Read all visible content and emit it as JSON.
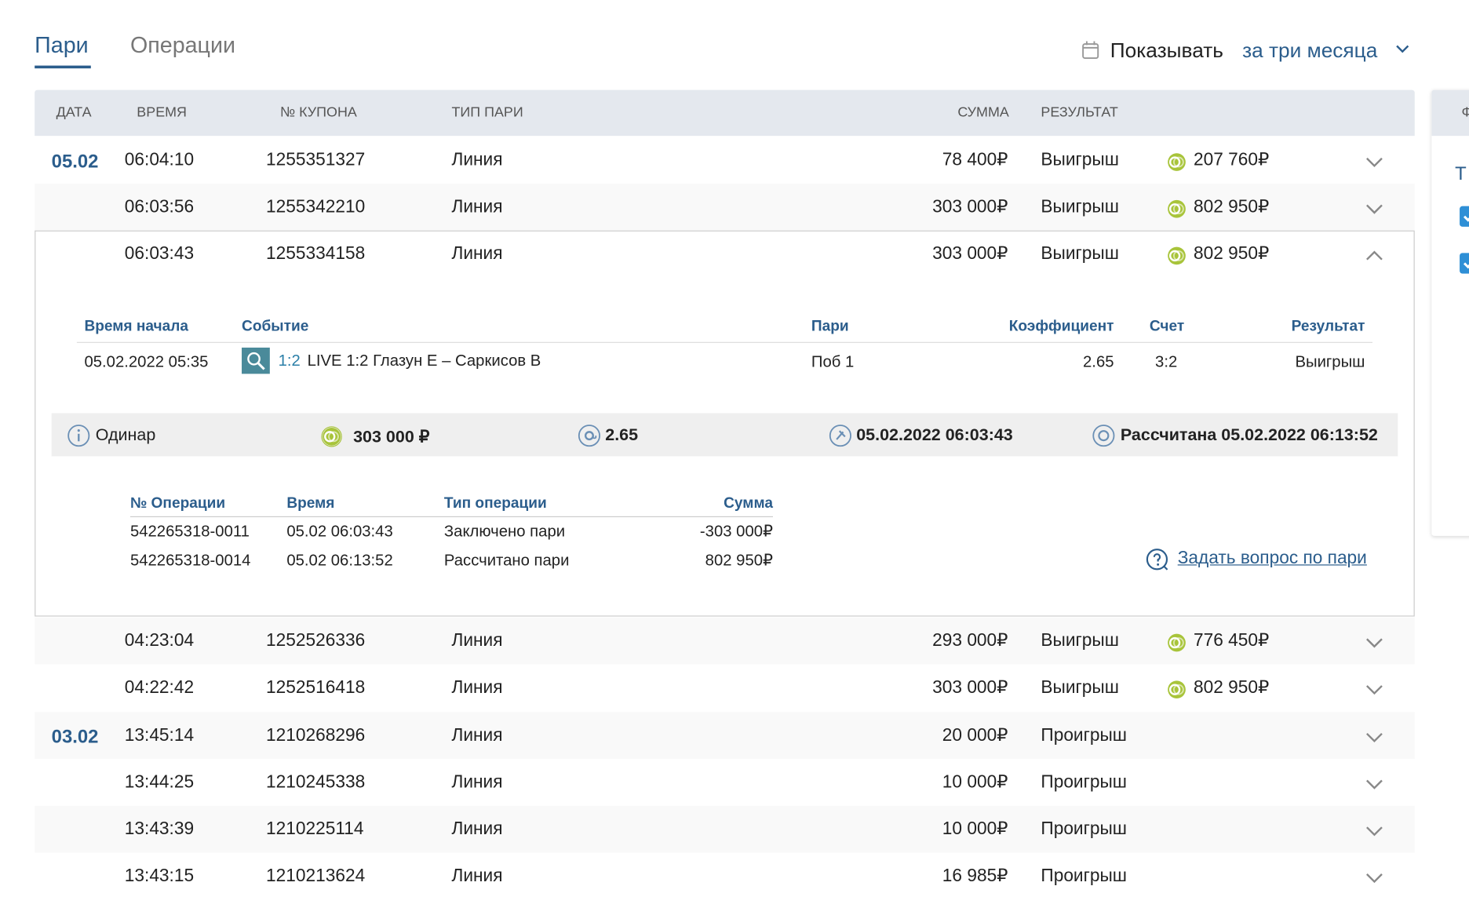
{
  "tabs": [
    "Пари",
    "Операции"
  ],
  "filter": {
    "label": "Показывать",
    "period": "за три месяца"
  },
  "table": {
    "headers": [
      "ДАТА",
      "ВРЕМЯ",
      "№ КУПОНА",
      "ТИП ПАРИ",
      "СУММА",
      "РЕЗУЛЬТАТ"
    ],
    "rows": [
      {
        "date": "05.02",
        "time": "06:04:10",
        "coupon": "1255351327",
        "type": "Линия",
        "amount": "78 400₽",
        "result": "Выигрыш",
        "payout": "207 760₽"
      },
      {
        "time": "06:03:56",
        "coupon": "1255342210",
        "type": "Линия",
        "amount": "303 000₽",
        "result": "Выигрыш",
        "payout": "802 950₽"
      },
      {
        "time": "06:03:43",
        "coupon": "1255334158",
        "type": "Линия",
        "amount": "303 000₽",
        "result": "Выигрыш",
        "payout": "802 950₽"
      },
      {
        "time": "04:23:04",
        "coupon": "1252526336",
        "type": "Линия",
        "amount": "293 000₽",
        "result": "Выигрыш",
        "payout": "776 450₽"
      },
      {
        "time": "04:22:42",
        "coupon": "1252516418",
        "type": "Линия",
        "amount": "303 000₽",
        "result": "Выигрыш",
        "payout": "802 950₽"
      },
      {
        "date": "03.02",
        "time": "13:45:14",
        "coupon": "1210268296",
        "type": "Линия",
        "amount": "20 000₽",
        "result": "Проигрыш"
      },
      {
        "time": "13:44:25",
        "coupon": "1210245338",
        "type": "Линия",
        "amount": "10 000₽",
        "result": "Проигрыш"
      },
      {
        "time": "13:43:39",
        "coupon": "1210225114",
        "type": "Линия",
        "amount": "10 000₽",
        "result": "Проигрыш"
      },
      {
        "time": "13:43:15",
        "coupon": "1210213624",
        "type": "Линия",
        "amount": "16 985₽",
        "result": "Проигрыш"
      }
    ]
  },
  "details": {
    "event_headers": [
      "Время начала",
      "Событие",
      "Пари",
      "Коэффициент",
      "Счет",
      "Результат"
    ],
    "event": {
      "start": "05.02.2022 05:35",
      "score_live": "1:2",
      "name": "LIVE 1:2 Глазун Е – Саркисов В",
      "bet": "Поб 1",
      "coef": "2.65",
      "score": "3:2",
      "result": "Выигрыш"
    },
    "summary": {
      "kind": "Одинар",
      "stake": "303 000 ₽",
      "coef": "2.65",
      "placed": "05.02.2022 06:03:43",
      "settled": "Рассчитана 05.02.2022 06:13:52"
    },
    "op_headers": [
      "№ Операции",
      "Время",
      "Тип операции",
      "Сумма"
    ],
    "operations": [
      [
        "542265318-0011",
        "05.02 06:03:43",
        "Заключено пари",
        "-303 000₽"
      ],
      [
        "542265318-0014",
        "05.02 06:13:52",
        "Рассчитано пари",
        "802 950₽"
      ]
    ],
    "question": "Задать вопрос по пари"
  },
  "side_panel": {
    "header": "Ф",
    "label": "Т"
  }
}
